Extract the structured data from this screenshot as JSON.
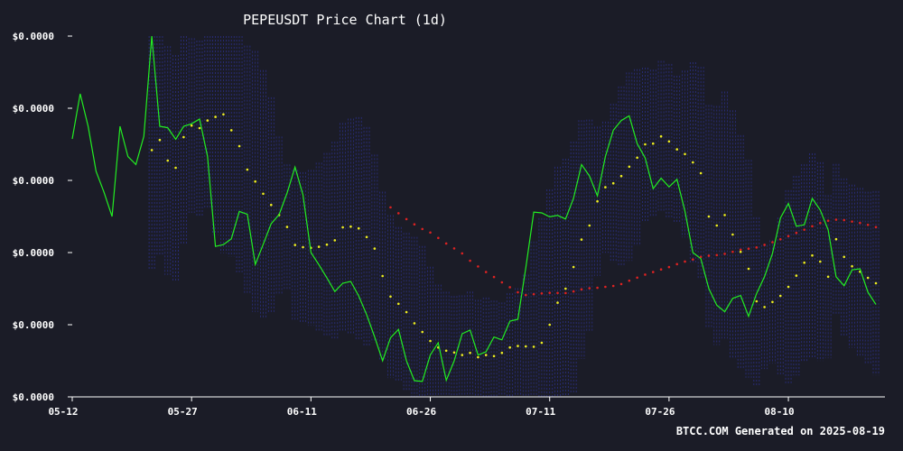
{
  "chart_data": {
    "type": "line",
    "title": "PEPEUSDT Price Chart (1d)",
    "footer": "BTCC.COM Generated on 2025-08-19",
    "xlabel": "",
    "ylabel": "",
    "x_start": "2025-05-12",
    "x_ticks": [
      "05-12",
      "05-27",
      "06-11",
      "06-26",
      "07-11",
      "07-26",
      "08-10"
    ],
    "y_ticks": [
      "$0.0000",
      "$0.0000",
      "$0.0000",
      "$0.0000",
      "$0.0000",
      "$0.0000"
    ],
    "ylim": [
      0,
      100
    ],
    "grid": false,
    "legend": "none",
    "colors": {
      "background": "#1b1c27",
      "price": "#22ee22",
      "sma_short": "#eeee22",
      "sma_long": "#dd2222",
      "bollinger": "#2b2f86",
      "axis": "#ffffff"
    },
    "series": [
      {
        "values": [
          71.5,
          84,
          75,
          62.5,
          56.7,
          50,
          75,
          66.6,
          64.4,
          72.2,
          100,
          75,
          74.6,
          71.4,
          75,
          75.7,
          77,
          66.7,
          41.7,
          42.2,
          43.8,
          51.4,
          50.6,
          36.7,
          42.3,
          48,
          50.5,
          56.5,
          63.7,
          56,
          40,
          36.6,
          33,
          29.2,
          31.5,
          32,
          28,
          22.8,
          16.6,
          10,
          16.4,
          18.7,
          10,
          4.5,
          4.3,
          11.6,
          15,
          4.6,
          10,
          17.5,
          18.5,
          11.6,
          12.5,
          16.6,
          15.8,
          21,
          21.5,
          35.8,
          51.2,
          51,
          49.9,
          50.3,
          49.3,
          55,
          64.4,
          61.2,
          55.7,
          66.6,
          73.9,
          76.6,
          77.9,
          70.2,
          66.2,
          57.7,
          60.6,
          58.2,
          60.3,
          51.5,
          40,
          38.3,
          30,
          25.4,
          23.6,
          27.3,
          28.1,
          22.3,
          28.6,
          33.3,
          39.7,
          49.6,
          53.6,
          47.3,
          47.7,
          55,
          51.8,
          46.3,
          33.3,
          30.8,
          35.2,
          35.5,
          29,
          25.6
        ]
      },
      {
        "values": [
          null,
          null,
          null,
          null,
          null,
          null,
          null,
          null,
          null,
          null,
          null,
          null,
          null,
          null,
          null,
          null,
          null,
          null,
          null,
          null,
          null,
          null,
          null,
          null,
          null,
          null,
          null,
          null,
          null,
          null,
          null,
          null,
          null,
          null,
          null,
          null,
          null,
          null,
          null,
          null,
          null,
          null,
          null,
          null,
          null,
          null,
          null,
          null,
          null,
          null,
          null,
          null,
          null,
          null,
          null,
          null,
          null,
          null,
          null,
          null,
          null,
          null,
          null,
          null,
          null,
          null,
          null,
          null,
          null,
          null,
          null,
          null,
          null,
          null,
          null,
          null,
          null,
          null,
          null,
          null,
          null,
          null,
          null,
          null,
          null,
          null,
          null,
          null,
          null,
          null,
          null,
          null,
          null,
          null,
          null,
          null,
          null,
          null,
          null,
          null,
          null,
          null,
          null
        ]
      }
    ]
  },
  "overlays": {
    "sma_short_start": 10,
    "sma_short": [
      68.4,
      71.2,
      65.5,
      63.5,
      72,
      75.2,
      74.5,
      76.6,
      77.6,
      78.3,
      73.9,
      69.5,
      63,
      59.7,
      56.3,
      53.2,
      50.4,
      47.1,
      42.1,
      41.5,
      41.3,
      41.6,
      42.2,
      43.4,
      47,
      47.2,
      46.7,
      44.3,
      41.1,
      33.5,
      27.8,
      25.8,
      23.5,
      20.4,
      18,
      15.5,
      13.7,
      12.8,
      12.3,
      11.6,
      12.2,
      11,
      11.6,
      11.3,
      12.2,
      13.7,
      14.1,
      14,
      13.9,
      15,
      20,
      26.1,
      30,
      36,
      43.6,
      47.5,
      54.2,
      58.1,
      59.2,
      61.2,
      63.8,
      66.3,
      70,
      70.2,
      72.2,
      70.8,
      68.6,
      67.3,
      65,
      62,
      50,
      47.5,
      50.4,
      45,
      40.2,
      35.5,
      26.5,
      24.9,
      26.3,
      28,
      30.5,
      33.6,
      37.2,
      39.2,
      37.5,
      33.3,
      43.7,
      38.8,
      36.2,
      34.7,
      33,
      31.5
    ]
  }
}
